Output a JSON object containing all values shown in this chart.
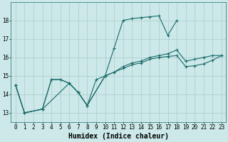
{
  "title": "",
  "xlabel": "Humidex (Indice chaleur)",
  "ylabel": "",
  "background_color": "#cce8e8",
  "grid_color": "#aacccc",
  "line_color": "#1a6b6b",
  "xlim": [
    -0.5,
    23.5
  ],
  "ylim": [
    12.5,
    19.0
  ],
  "xticks": [
    0,
    1,
    2,
    3,
    4,
    5,
    6,
    7,
    8,
    9,
    10,
    11,
    12,
    13,
    14,
    15,
    16,
    17,
    18,
    19,
    20,
    21,
    22,
    23
  ],
  "yticks": [
    13,
    14,
    15,
    16,
    17,
    18
  ],
  "line1_x": [
    0,
    1,
    3,
    4,
    5,
    6,
    7,
    8,
    9,
    10,
    11,
    12,
    13,
    14,
    15,
    16,
    17,
    18
  ],
  "line1_y": [
    14.5,
    13.0,
    13.2,
    14.8,
    14.8,
    14.6,
    14.1,
    13.4,
    14.8,
    15.0,
    16.5,
    18.0,
    18.1,
    18.15,
    18.2,
    18.25,
    17.2,
    18.0
  ],
  "line2_x": [
    0,
    1,
    3,
    4,
    5,
    6,
    7,
    8,
    10,
    11,
    12,
    13,
    14,
    15,
    16,
    17,
    18,
    19,
    20,
    21,
    22,
    23
  ],
  "line2_y": [
    14.5,
    13.0,
    13.2,
    14.8,
    14.8,
    14.6,
    14.1,
    13.4,
    15.0,
    15.2,
    15.5,
    15.7,
    15.8,
    16.0,
    16.1,
    16.2,
    16.4,
    15.8,
    15.9,
    16.0,
    16.1,
    16.1
  ],
  "line3_x": [
    0,
    1,
    3,
    6,
    7,
    8,
    10,
    11,
    12,
    13,
    14,
    15,
    16,
    17,
    18,
    19,
    20,
    21,
    22,
    23
  ],
  "line3_y": [
    14.5,
    13.0,
    13.2,
    14.6,
    14.1,
    13.4,
    15.0,
    15.2,
    15.4,
    15.6,
    15.7,
    15.9,
    16.0,
    16.05,
    16.1,
    15.5,
    15.55,
    15.65,
    15.85,
    16.1
  ],
  "marker": "+",
  "markersize": 3,
  "linewidth": 0.8,
  "xlabel_fontsize": 7,
  "tick_fontsize": 5.5
}
